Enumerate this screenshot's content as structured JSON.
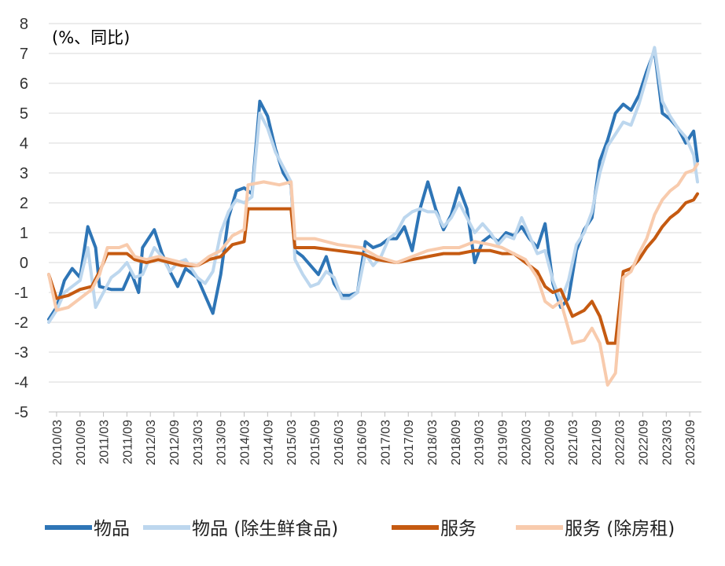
{
  "chart_data": {
    "type": "line",
    "unit_label": "(%、同比)",
    "ylim": [
      -5,
      8
    ],
    "yticks": [
      "8",
      "7",
      "6",
      "5",
      "4",
      "3",
      "2",
      "1",
      "0",
      "-1",
      "-2",
      "-3",
      "-4",
      "-5"
    ],
    "grid": "horizontal",
    "legend_position": "bottom",
    "x_tick_labels": [
      "2010/03",
      "2010/09",
      "2011/03",
      "2011/09",
      "2012/03",
      "2012/09",
      "2013/03",
      "2013/09",
      "2014/03",
      "2014/09",
      "2015/03",
      "2015/09",
      "2016/03",
      "2016/09",
      "2017/03",
      "2017/09",
      "2018/03",
      "2018/09",
      "2019/03",
      "2019/09",
      "2020/03",
      "2020/09",
      "2021/03",
      "2021/09",
      "2022/03",
      "2022/09",
      "2023/03",
      "2023/09"
    ],
    "x_start": "2010/01",
    "series": [
      {
        "name": "物品",
        "color": "#2e75b6",
        "points": [
          [
            "2010/01",
            -1.9
          ],
          [
            "2010/03",
            -1.5
          ],
          [
            "2010/05",
            -0.6
          ],
          [
            "2010/07",
            -0.2
          ],
          [
            "2010/09",
            -0.5
          ],
          [
            "2010/11",
            1.2
          ],
          [
            "2011/01",
            0.5
          ],
          [
            "2011/02",
            -0.8
          ],
          [
            "2011/05",
            -0.9
          ],
          [
            "2011/08",
            -0.9
          ],
          [
            "2011/10",
            -0.3
          ],
          [
            "2011/12",
            -1.0
          ],
          [
            "2012/01",
            0.5
          ],
          [
            "2012/04",
            1.1
          ],
          [
            "2012/06",
            0.3
          ],
          [
            "2012/08",
            -0.3
          ],
          [
            "2012/10",
            -0.8
          ],
          [
            "2012/12",
            -0.2
          ],
          [
            "2013/03",
            -0.5
          ],
          [
            "2013/05",
            -1.1
          ],
          [
            "2013/07",
            -1.7
          ],
          [
            "2013/09",
            -0.4
          ],
          [
            "2013/11",
            1.5
          ],
          [
            "2014/01",
            2.4
          ],
          [
            "2014/03",
            2.5
          ],
          [
            "2014/05",
            2.3
          ],
          [
            "2014/07",
            5.4
          ],
          [
            "2014/09",
            4.9
          ],
          [
            "2014/11",
            3.8
          ],
          [
            "2015/01",
            3.0
          ],
          [
            "2015/03",
            2.6
          ],
          [
            "2015/04",
            0.4
          ],
          [
            "2015/06",
            0.2
          ],
          [
            "2015/08",
            -0.1
          ],
          [
            "2015/10",
            -0.4
          ],
          [
            "2015/12",
            0.2
          ],
          [
            "2016/02",
            -0.7
          ],
          [
            "2016/04",
            -1.1
          ],
          [
            "2016/06",
            -1.1
          ],
          [
            "2016/08",
            -1.0
          ],
          [
            "2016/10",
            0.7
          ],
          [
            "2016/12",
            0.5
          ],
          [
            "2017/02",
            0.6
          ],
          [
            "2017/04",
            0.8
          ],
          [
            "2017/06",
            0.8
          ],
          [
            "2017/08",
            1.2
          ],
          [
            "2017/10",
            0.4
          ],
          [
            "2017/12",
            1.8
          ],
          [
            "2018/02",
            2.7
          ],
          [
            "2018/04",
            1.8
          ],
          [
            "2018/06",
            1.1
          ],
          [
            "2018/08",
            1.6
          ],
          [
            "2018/10",
            2.5
          ],
          [
            "2018/12",
            1.8
          ],
          [
            "2019/02",
            0.0
          ],
          [
            "2019/04",
            0.7
          ],
          [
            "2019/06",
            0.9
          ],
          [
            "2019/08",
            0.7
          ],
          [
            "2019/10",
            1.0
          ],
          [
            "2019/12",
            0.9
          ],
          [
            "2020/02",
            1.2
          ],
          [
            "2020/04",
            0.8
          ],
          [
            "2020/06",
            0.5
          ],
          [
            "2020/08",
            1.3
          ],
          [
            "2020/10",
            -0.7
          ],
          [
            "2020/12",
            -1.5
          ],
          [
            "2021/02",
            -1.2
          ],
          [
            "2021/04",
            0.4
          ],
          [
            "2021/06",
            1.1
          ],
          [
            "2021/08",
            1.5
          ],
          [
            "2021/10",
            3.4
          ],
          [
            "2021/12",
            4.1
          ],
          [
            "2022/02",
            5.0
          ],
          [
            "2022/04",
            5.3
          ],
          [
            "2022/06",
            5.1
          ],
          [
            "2022/08",
            5.6
          ],
          [
            "2022/10",
            6.4
          ],
          [
            "2022/12",
            7.1
          ],
          [
            "2023/02",
            5.0
          ],
          [
            "2023/04",
            4.8
          ],
          [
            "2023/06",
            4.5
          ],
          [
            "2023/08",
            4.0
          ],
          [
            "2023/10",
            4.4
          ],
          [
            "2023/11",
            3.4
          ]
        ]
      },
      {
        "name": "物品 (除生鲜食品)",
        "color": "#bdd7ee",
        "points": [
          [
            "2010/01",
            -2.0
          ],
          [
            "2010/03",
            -1.6
          ],
          [
            "2010/05",
            -1.0
          ],
          [
            "2010/07",
            -0.8
          ],
          [
            "2010/09",
            -0.6
          ],
          [
            "2010/11",
            0.5
          ],
          [
            "2011/01",
            -1.5
          ],
          [
            "2011/03",
            -1.0
          ],
          [
            "2011/05",
            -0.5
          ],
          [
            "2011/07",
            -0.3
          ],
          [
            "2011/09",
            0.0
          ],
          [
            "2011/11",
            -0.5
          ],
          [
            "2012/01",
            -0.4
          ],
          [
            "2012/04",
            0.5
          ],
          [
            "2012/06",
            0.2
          ],
          [
            "2012/08",
            -0.3
          ],
          [
            "2012/10",
            0.0
          ],
          [
            "2012/12",
            0.1
          ],
          [
            "2013/03",
            -0.5
          ],
          [
            "2013/05",
            -0.7
          ],
          [
            "2013/07",
            -0.3
          ],
          [
            "2013/09",
            1.0
          ],
          [
            "2013/11",
            1.7
          ],
          [
            "2014/01",
            2.1
          ],
          [
            "2014/03",
            2.0
          ],
          [
            "2014/05",
            2.2
          ],
          [
            "2014/07",
            5.0
          ],
          [
            "2014/09",
            4.5
          ],
          [
            "2014/11",
            3.7
          ],
          [
            "2015/01",
            3.2
          ],
          [
            "2015/03",
            2.7
          ],
          [
            "2015/04",
            0.1
          ],
          [
            "2015/06",
            -0.4
          ],
          [
            "2015/08",
            -0.8
          ],
          [
            "2015/10",
            -0.7
          ],
          [
            "2015/12",
            -0.3
          ],
          [
            "2016/02",
            -0.5
          ],
          [
            "2016/04",
            -1.2
          ],
          [
            "2016/06",
            -1.2
          ],
          [
            "2016/08",
            -1.0
          ],
          [
            "2016/10",
            0.3
          ],
          [
            "2016/12",
            -0.1
          ],
          [
            "2017/02",
            0.2
          ],
          [
            "2017/04",
            0.8
          ],
          [
            "2017/06",
            1.0
          ],
          [
            "2017/08",
            1.5
          ],
          [
            "2017/10",
            1.7
          ],
          [
            "2017/12",
            1.8
          ],
          [
            "2018/02",
            1.7
          ],
          [
            "2018/04",
            1.7
          ],
          [
            "2018/06",
            1.2
          ],
          [
            "2018/08",
            1.5
          ],
          [
            "2018/10",
            2.0
          ],
          [
            "2018/12",
            1.5
          ],
          [
            "2019/02",
            1.0
          ],
          [
            "2019/04",
            1.3
          ],
          [
            "2019/06",
            1.0
          ],
          [
            "2019/08",
            0.6
          ],
          [
            "2019/10",
            0.9
          ],
          [
            "2019/12",
            0.8
          ],
          [
            "2020/02",
            1.5
          ],
          [
            "2020/04",
            0.9
          ],
          [
            "2020/06",
            0.3
          ],
          [
            "2020/08",
            0.4
          ],
          [
            "2020/10",
            -0.6
          ],
          [
            "2020/12",
            -1.3
          ],
          [
            "2021/02",
            -0.6
          ],
          [
            "2021/04",
            0.6
          ],
          [
            "2021/06",
            1.0
          ],
          [
            "2021/08",
            1.7
          ],
          [
            "2021/10",
            3.0
          ],
          [
            "2021/12",
            3.9
          ],
          [
            "2022/02",
            4.3
          ],
          [
            "2022/04",
            4.7
          ],
          [
            "2022/06",
            4.6
          ],
          [
            "2022/08",
            5.3
          ],
          [
            "2022/10",
            6.2
          ],
          [
            "2022/12",
            7.2
          ],
          [
            "2023/02",
            5.4
          ],
          [
            "2023/04",
            4.9
          ],
          [
            "2023/06",
            4.5
          ],
          [
            "2023/08",
            4.2
          ],
          [
            "2023/10",
            3.6
          ],
          [
            "2023/11",
            2.7
          ]
        ]
      },
      {
        "name": "服务",
        "color": "#c55a11",
        "points": [
          [
            "2010/01",
            -0.4
          ],
          [
            "2010/03",
            -1.2
          ],
          [
            "2010/06",
            -1.1
          ],
          [
            "2010/09",
            -0.9
          ],
          [
            "2010/12",
            -0.8
          ],
          [
            "2011/02",
            -0.3
          ],
          [
            "2011/04",
            0.3
          ],
          [
            "2011/07",
            0.3
          ],
          [
            "2011/09",
            0.3
          ],
          [
            "2011/11",
            0.1
          ],
          [
            "2012/02",
            0.0
          ],
          [
            "2012/05",
            0.1
          ],
          [
            "2012/08",
            0.0
          ],
          [
            "2012/11",
            -0.1
          ],
          [
            "2013/03",
            -0.1
          ],
          [
            "2013/06",
            0.1
          ],
          [
            "2013/09",
            0.2
          ],
          [
            "2013/12",
            0.6
          ],
          [
            "2014/03",
            0.7
          ],
          [
            "2014/04",
            1.8
          ],
          [
            "2014/08",
            1.8
          ],
          [
            "2014/12",
            1.8
          ],
          [
            "2015/03",
            1.8
          ],
          [
            "2015/04",
            0.5
          ],
          [
            "2015/09",
            0.5
          ],
          [
            "2016/03",
            0.4
          ],
          [
            "2016/09",
            0.3
          ],
          [
            "2017/01",
            0.1
          ],
          [
            "2017/06",
            0.0
          ],
          [
            "2017/10",
            0.1
          ],
          [
            "2018/02",
            0.2
          ],
          [
            "2018/06",
            0.3
          ],
          [
            "2018/10",
            0.3
          ],
          [
            "2019/02",
            0.4
          ],
          [
            "2019/06",
            0.4
          ],
          [
            "2019/09",
            0.3
          ],
          [
            "2019/12",
            0.3
          ],
          [
            "2020/03",
            0.0
          ],
          [
            "2020/06",
            -0.3
          ],
          [
            "2020/08",
            -0.8
          ],
          [
            "2020/10",
            -1.0
          ],
          [
            "2020/12",
            -0.9
          ],
          [
            "2021/03",
            -1.8
          ],
          [
            "2021/06",
            -1.6
          ],
          [
            "2021/08",
            -1.3
          ],
          [
            "2021/10",
            -1.8
          ],
          [
            "2021/12",
            -2.7
          ],
          [
            "2022/02",
            -2.7
          ],
          [
            "2022/04",
            -0.3
          ],
          [
            "2022/06",
            -0.2
          ],
          [
            "2022/08",
            0.1
          ],
          [
            "2022/10",
            0.5
          ],
          [
            "2022/12",
            0.8
          ],
          [
            "2023/02",
            1.2
          ],
          [
            "2023/04",
            1.5
          ],
          [
            "2023/06",
            1.7
          ],
          [
            "2023/08",
            2.0
          ],
          [
            "2023/10",
            2.1
          ],
          [
            "2023/11",
            2.3
          ]
        ]
      },
      {
        "name": "服务 (除房租)",
        "color": "#f8cbad",
        "points": [
          [
            "2010/01",
            -0.4
          ],
          [
            "2010/03",
            -1.6
          ],
          [
            "2010/06",
            -1.5
          ],
          [
            "2010/09",
            -1.2
          ],
          [
            "2010/12",
            -0.9
          ],
          [
            "2011/02",
            -0.4
          ],
          [
            "2011/04",
            0.5
          ],
          [
            "2011/07",
            0.5
          ],
          [
            "2011/09",
            0.6
          ],
          [
            "2011/11",
            0.2
          ],
          [
            "2012/02",
            0.1
          ],
          [
            "2012/05",
            0.2
          ],
          [
            "2012/08",
            0.1
          ],
          [
            "2012/11",
            0.0
          ],
          [
            "2013/03",
            -0.1
          ],
          [
            "2013/06",
            0.2
          ],
          [
            "2013/09",
            0.4
          ],
          [
            "2013/12",
            0.9
          ],
          [
            "2014/03",
            1.1
          ],
          [
            "2014/04",
            2.6
          ],
          [
            "2014/08",
            2.7
          ],
          [
            "2014/12",
            2.6
          ],
          [
            "2015/03",
            2.7
          ],
          [
            "2015/04",
            0.8
          ],
          [
            "2015/09",
            0.8
          ],
          [
            "2016/03",
            0.6
          ],
          [
            "2016/09",
            0.5
          ],
          [
            "2017/01",
            0.2
          ],
          [
            "2017/06",
            0.0
          ],
          [
            "2017/10",
            0.2
          ],
          [
            "2018/02",
            0.4
          ],
          [
            "2018/06",
            0.5
          ],
          [
            "2018/10",
            0.5
          ],
          [
            "2019/02",
            0.7
          ],
          [
            "2019/06",
            0.6
          ],
          [
            "2019/09",
            0.5
          ],
          [
            "2019/12",
            0.3
          ],
          [
            "2020/03",
            0.1
          ],
          [
            "2020/06",
            -0.5
          ],
          [
            "2020/08",
            -1.3
          ],
          [
            "2020/10",
            -1.5
          ],
          [
            "2020/12",
            -1.3
          ],
          [
            "2021/03",
            -2.7
          ],
          [
            "2021/06",
            -2.6
          ],
          [
            "2021/08",
            -2.2
          ],
          [
            "2021/10",
            -2.7
          ],
          [
            "2021/12",
            -4.1
          ],
          [
            "2022/02",
            -3.7
          ],
          [
            "2022/04",
            -0.5
          ],
          [
            "2022/06",
            -0.3
          ],
          [
            "2022/08",
            0.3
          ],
          [
            "2022/10",
            0.8
          ],
          [
            "2022/12",
            1.6
          ],
          [
            "2023/02",
            2.1
          ],
          [
            "2023/04",
            2.4
          ],
          [
            "2023/06",
            2.6
          ],
          [
            "2023/08",
            3.0
          ],
          [
            "2023/10",
            3.1
          ],
          [
            "2023/11",
            3.3
          ]
        ]
      }
    ]
  }
}
